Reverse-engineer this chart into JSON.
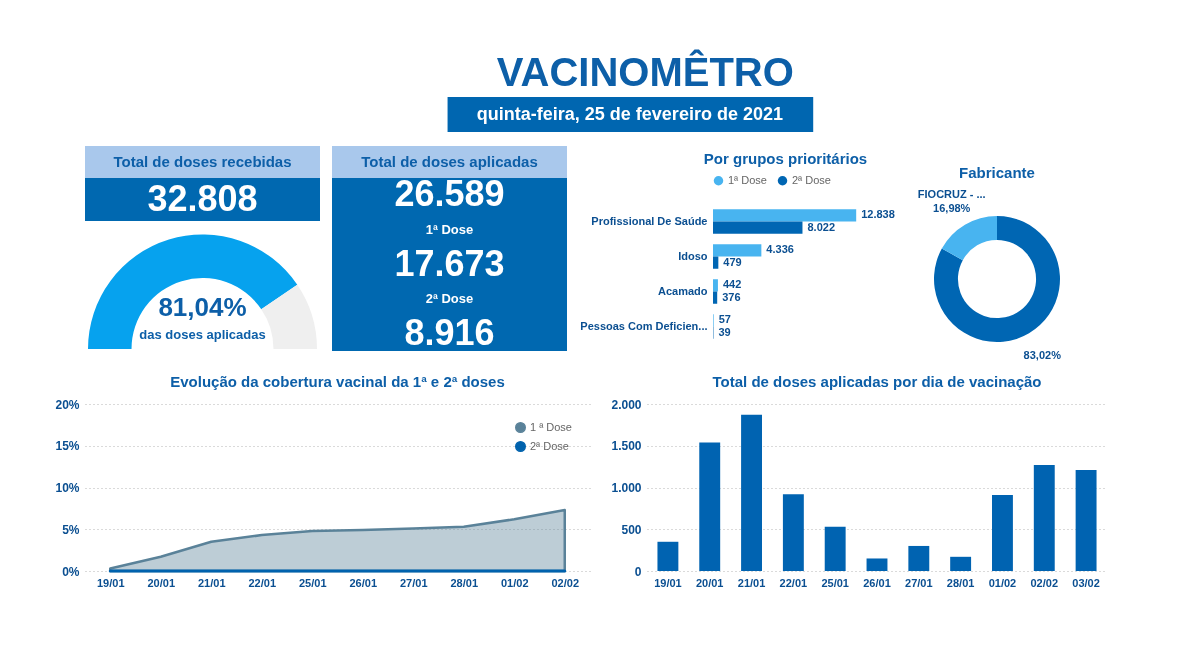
{
  "chart_data": [
    {
      "type": "other",
      "title": "VACINOMÊTRO",
      "subtitle": "quinta-feira, 25 de fevereiro de 2021"
    },
    {
      "type": "other",
      "title": "Total de doses recebidas",
      "annotations": [
        "32.808"
      ]
    },
    {
      "type": "donut",
      "categories": [
        null,
        null
      ],
      "values": [
        81.04,
        18.96
      ],
      "colors": [
        "#06a2ee",
        "#efefef"
      ],
      "value_labels": [
        "81,04%",
        null
      ],
      "annotations": [
        "das doses aplicadas"
      ]
    },
    {
      "type": "other",
      "title": "Total de doses aplicadas",
      "annotations": [
        "26.589",
        "1ª Dose",
        "17.673",
        "2ª Dose",
        "8.916"
      ]
    },
    {
      "type": "bar",
      "orientation": "horizontal",
      "title": "Por grupos prioritários",
      "categories": [
        "Profissional De Saúde",
        "Idoso",
        "Acamado",
        "Pessoas Com Deficien..."
      ],
      "series": [
        {
          "name": "1ª Dose",
          "color": "#48b4f0",
          "values": [
            12838,
            4336,
            442,
            57
          ],
          "value_labels": [
            "12.838",
            "4.336",
            "442",
            "57"
          ]
        },
        {
          "name": "2ª Dose",
          "color": "#0066b3",
          "values": [
            8022,
            479,
            376,
            39
          ],
          "value_labels": [
            "8.022",
            "479",
            "376",
            "39"
          ]
        }
      ],
      "legend": "top",
      "tick_labels": "y"
    },
    {
      "type": "donut",
      "title": "Fabricante",
      "categories": [
        null,
        "FIOCRUZ - ..."
      ],
      "values": [
        83.02,
        16.98
      ],
      "colors": [
        "#0066b3",
        "#48b4f0"
      ],
      "value_labels": [
        "83,02%",
        "16,98%"
      ]
    },
    {
      "type": "area",
      "title": "Evolução da cobertura vacinal da 1ª e 2ª doses",
      "categories": [
        "19/01",
        "20/01",
        "21/01",
        "22/01",
        "25/01",
        "26/01",
        "27/01",
        "28/01",
        "01/02",
        "02/02"
      ],
      "series": [
        {
          "name": "1 ª Dose",
          "color": "#5a8299",
          "values": [
            0.3,
            1.7,
            3.5,
            4.3,
            4.8,
            4.9,
            5.1,
            5.3,
            6.2,
            7.3
          ]
        },
        {
          "name": "2ª Dose",
          "type": "line",
          "color": "#0062ad",
          "values": [
            0,
            0,
            0,
            0,
            0,
            0,
            0,
            0,
            0,
            0
          ]
        }
      ],
      "ylim": [
        0,
        20
      ],
      "yticks": [
        {
          "value": 0,
          "label": "0%"
        },
        {
          "value": 5,
          "label": "5%"
        },
        {
          "value": 10,
          "label": "10%"
        },
        {
          "value": 15,
          "label": "15%"
        },
        {
          "value": 20,
          "label": "20%"
        }
      ],
      "grid": "y",
      "legend": "top right"
    },
    {
      "type": "bar",
      "title": "Total de doses aplicadas por dia de vacinação",
      "categories": [
        "19/01",
        "20/01",
        "21/01",
        "22/01",
        "25/01",
        "26/01",
        "27/01",
        "28/01",
        "01/02",
        "02/02",
        "03/02"
      ],
      "values": [
        350,
        1540,
        1870,
        920,
        530,
        150,
        300,
        170,
        910,
        1270,
        1210
      ],
      "color": "#0063b1",
      "ylim": [
        0,
        2000
      ],
      "yticks": [
        0,
        500,
        {
          "value": 1000,
          "label": "1.000"
        },
        {
          "value": 1500,
          "label": "1.500"
        },
        {
          "value": 2000,
          "label": "2.000"
        }
      ],
      "grid": "y"
    }
  ]
}
